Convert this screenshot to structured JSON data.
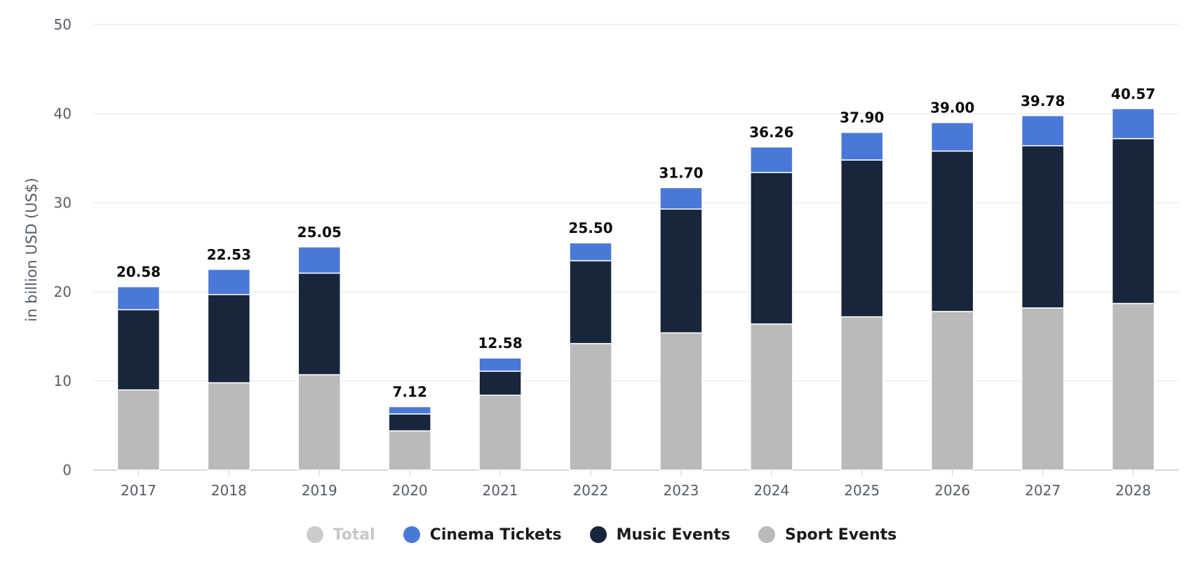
{
  "chart_data": {
    "type": "bar",
    "stacked": true,
    "ylabel": "in billion USD (US$)",
    "ylim": [
      0,
      50
    ],
    "yticks": [
      0,
      10,
      20,
      30,
      40,
      50
    ],
    "grid": true,
    "legend_position": "bottom",
    "categories": [
      "2017",
      "2018",
      "2019",
      "2020",
      "2021",
      "2022",
      "2023",
      "2024",
      "2025",
      "2026",
      "2027",
      "2028"
    ],
    "totals": [
      "20.58",
      "22.53",
      "25.05",
      "7.12",
      "12.58",
      "25.50",
      "31.70",
      "36.26",
      "37.90",
      "39.00",
      "39.78",
      "40.57"
    ],
    "series": [
      {
        "name": "Sport Events",
        "color": "#bababa",
        "values": [
          9.0,
          9.8,
          10.7,
          4.4,
          8.4,
          14.2,
          15.4,
          16.4,
          17.2,
          17.8,
          18.2,
          18.7
        ]
      },
      {
        "name": "Music Events",
        "color": "#17263b",
        "values": [
          9.0,
          9.9,
          11.4,
          1.9,
          2.7,
          9.3,
          13.9,
          17.0,
          17.6,
          18.0,
          18.2,
          18.5
        ]
      },
      {
        "name": "Cinema Tickets",
        "color": "#4a78d8",
        "values": [
          2.58,
          2.83,
          2.95,
          0.82,
          1.48,
          2.0,
          2.4,
          2.86,
          3.1,
          3.2,
          3.38,
          3.37
        ]
      }
    ],
    "legend": [
      {
        "name": "Total",
        "color": "#cccccc",
        "hidden": true
      },
      {
        "name": "Cinema Tickets",
        "color": "#4a78d8",
        "hidden": false
      },
      {
        "name": "Music Events",
        "color": "#17263b",
        "hidden": false
      },
      {
        "name": "Sport Events",
        "color": "#bababa",
        "hidden": false
      }
    ]
  }
}
